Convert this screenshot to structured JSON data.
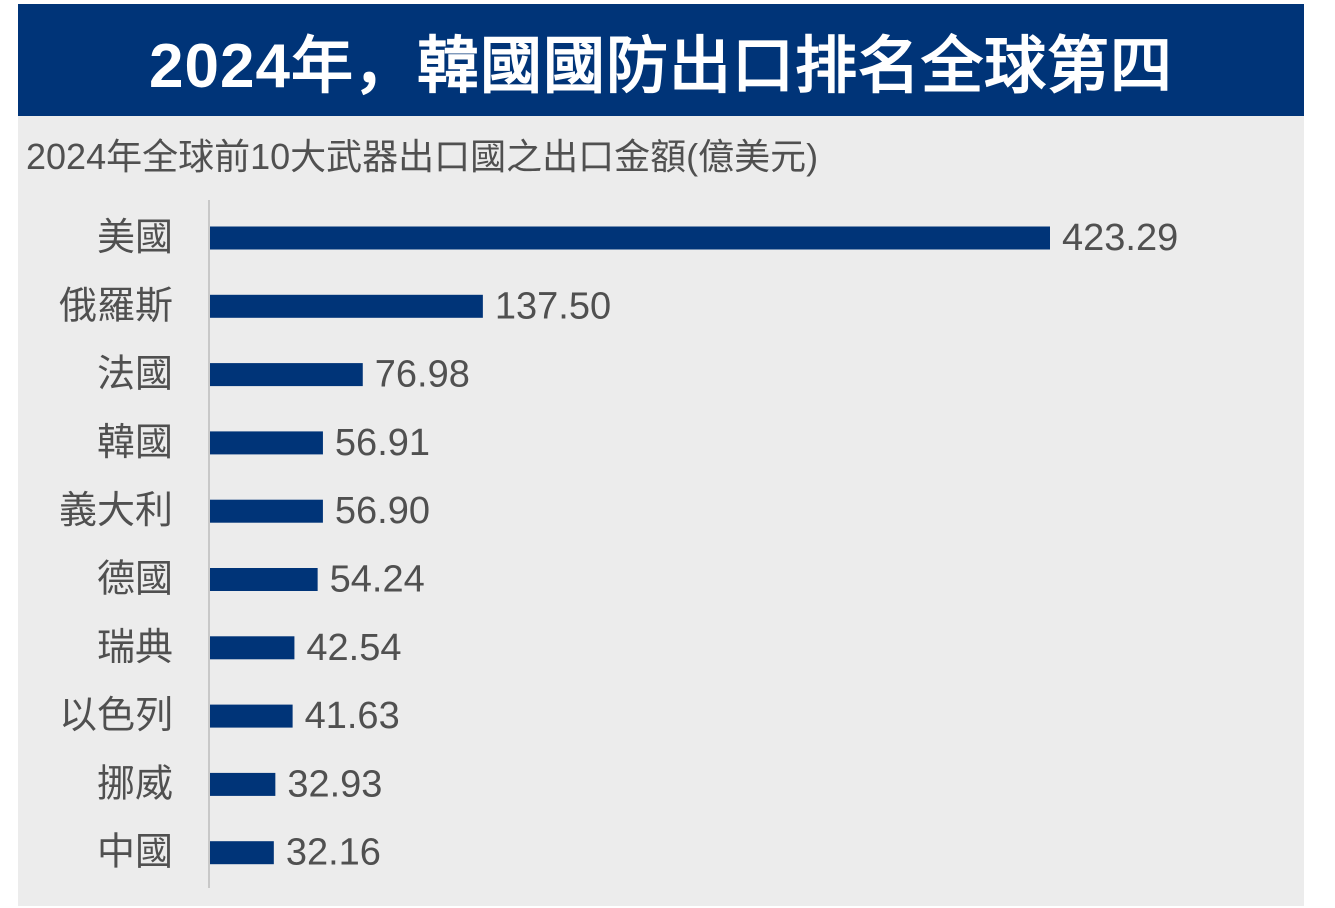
{
  "header": {
    "title": "2024年，韓國國防出口排名全球第四"
  },
  "colors": {
    "bar": "#003478",
    "title_background": "#003478",
    "panel_background": "#ececec",
    "text": "#505050",
    "axis_line": "#c8c8c8"
  },
  "chart_data": {
    "type": "bar",
    "orientation": "horizontal",
    "title": "2024年全球前10大武器出口國之出口金額(億美元)",
    "categories": [
      "美國",
      "俄羅斯",
      "法國",
      "韓國",
      "義大利",
      "德國",
      "瑞典",
      "以色列",
      "挪威",
      "中國"
    ],
    "values": [
      423.29,
      137.5,
      76.98,
      56.91,
      56.9,
      54.24,
      42.54,
      41.63,
      32.93,
      32.16
    ],
    "data_labels": [
      "423.29",
      "137.50",
      "76.98",
      "56.91",
      "56.90",
      "54.24",
      "42.54",
      "41.63",
      "32.93",
      "32.16"
    ],
    "xlim": [
      0,
      423.29
    ],
    "grid": false,
    "legend": "none"
  }
}
